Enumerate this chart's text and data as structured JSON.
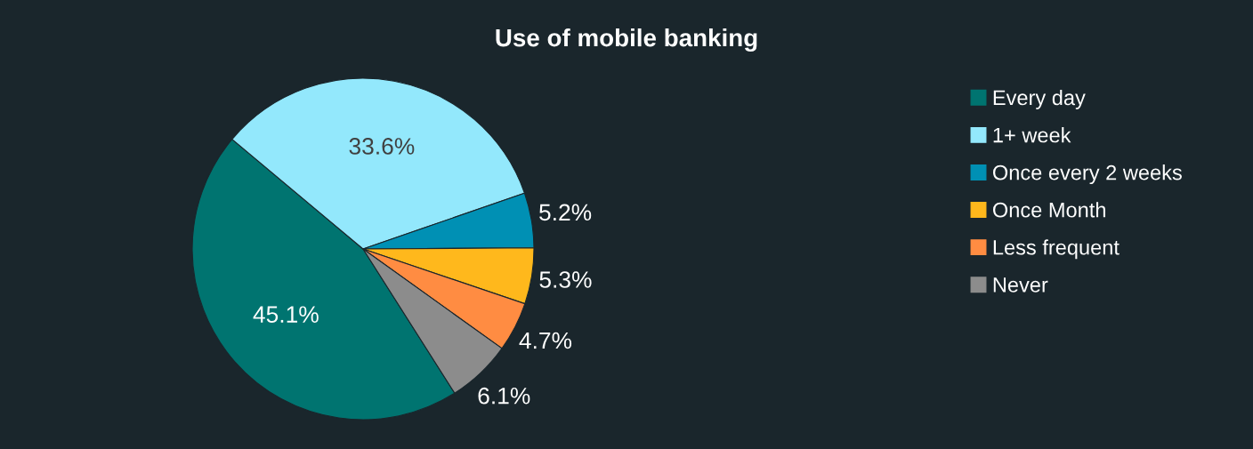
{
  "chart_data": {
    "type": "pie",
    "title": "Use of mobile banking",
    "categories": [
      "Every day",
      "1+ week",
      "Once every 2 weeks",
      "Once Month",
      "Less frequent",
      "Never"
    ],
    "values": [
      45.1,
      33.6,
      5.2,
      5.3,
      4.7,
      6.1
    ],
    "colors": [
      "#007470",
      "#93e8fc",
      "#0090b4",
      "#ffb81c",
      "#ff8c42",
      "#8c8c8c"
    ],
    "value_labels": [
      "45.1%",
      "33.6%",
      "5.2%",
      "5.3%",
      "4.7%",
      "6.1%"
    ],
    "legend": "right"
  }
}
